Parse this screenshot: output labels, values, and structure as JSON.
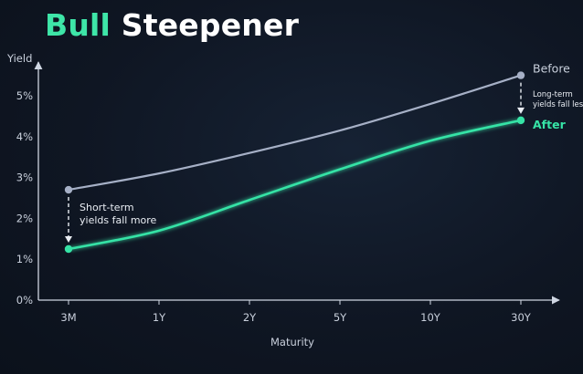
{
  "colors": {
    "before": "#a6b0c6",
    "after": "#36e3a6",
    "axis": "#cfd6e2",
    "text": "#c9d0dc",
    "annotation": "#e9edf3"
  },
  "title": {
    "accent": "Bull",
    "rest": "Steepener"
  },
  "chart_data": {
    "type": "line",
    "title": "Bull Steepener",
    "xlabel": "Maturity",
    "ylabel": "Yield",
    "categories": [
      "3M",
      "1Y",
      "2Y",
      "5Y",
      "10Y",
      "30Y"
    ],
    "ylim": [
      0,
      5.8
    ],
    "yticks": [
      "0%",
      "1%",
      "2%",
      "3%",
      "4%",
      "5%"
    ],
    "series": [
      {
        "name": "Before",
        "values": [
          2.7,
          3.1,
          3.6,
          4.15,
          4.8,
          5.5
        ]
      },
      {
        "name": "After",
        "values": [
          1.25,
          1.7,
          2.45,
          3.2,
          3.9,
          4.4
        ]
      }
    ],
    "annotations": {
      "short": [
        "Short-term",
        "yields fall more"
      ],
      "long": [
        "Long-term",
        "yields fall less"
      ]
    },
    "grid": false,
    "legend": "end-of-line labels"
  }
}
